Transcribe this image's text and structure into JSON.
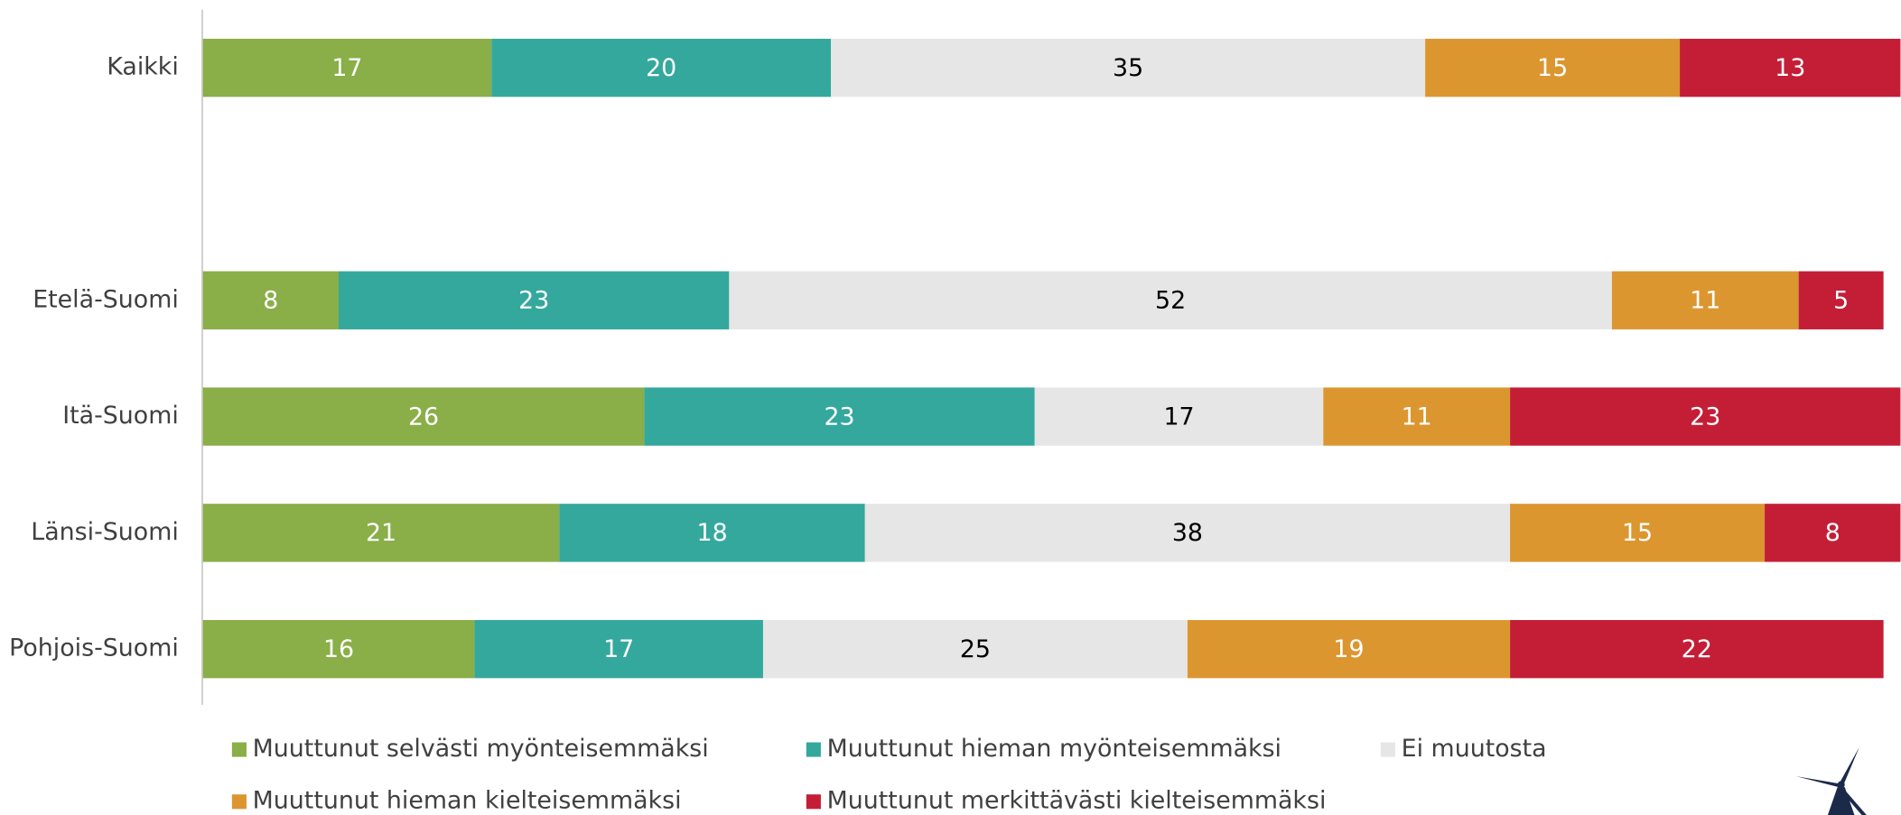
{
  "chart_data": {
    "type": "stacked-barh",
    "categories": [
      "Kaikki",
      null,
      "Etelä-Suomi",
      "Itä-Suomi",
      "Länsi-Suomi",
      "Pohjois-Suomi"
    ],
    "series": [
      {
        "name": "Muuttunut selvästi myönteisemmäksi",
        "color": "#8aae48",
        "values": [
          17,
          null,
          8,
          26,
          21,
          16
        ]
      },
      {
        "name": "Muuttunut hieman myönteisemmäksi",
        "color": "#34a89c",
        "values": [
          20,
          null,
          23,
          23,
          18,
          17
        ]
      },
      {
        "name": "Ei muutosta",
        "color": "#e6e6e6",
        "values": [
          35,
          null,
          52,
          17,
          38,
          25
        ]
      },
      {
        "name": "Muuttunut hieman kielteisemmäksi",
        "color": "#dc9630",
        "values": [
          15,
          null,
          11,
          11,
          15,
          19
        ]
      },
      {
        "name": "Muuttunut merkittävästi kielteisemmäksi",
        "color": "#c41e36",
        "values": [
          13,
          null,
          5,
          23,
          8,
          22
        ]
      }
    ],
    "xlim": [
      0,
      100
    ],
    "legend": "bottom"
  }
}
